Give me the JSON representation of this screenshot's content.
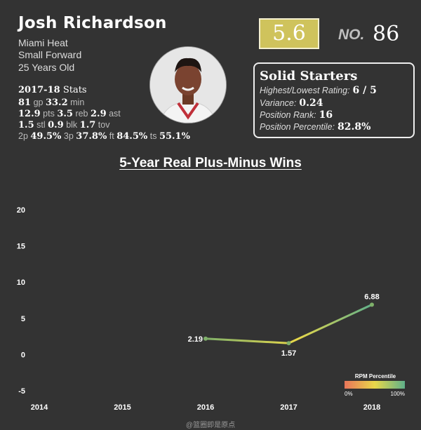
{
  "player": {
    "name": "Josh Richardson",
    "team": "Miami Heat",
    "position": "Small Forward",
    "age": "25 Years Old"
  },
  "season_stats": {
    "year": "2017-18",
    "label": "Stats",
    "gp": "81",
    "gp_label": "gp",
    "min": "33.2",
    "min_label": "min",
    "pts": "12.9",
    "pts_label": "pts",
    "reb": "3.5",
    "reb_label": "reb",
    "ast": "2.9",
    "ast_label": "ast",
    "stl": "1.5",
    "stl_label": "stl",
    "blk": "0.9",
    "blk_label": "blk",
    "tov": "1.7",
    "tov_label": "tov",
    "p2_label": "2p",
    "p2": "49.5%",
    "p3_label": "3p",
    "p3": "37.8%",
    "ft_label": "ft",
    "ft": "84.5%",
    "ts_label": "ts",
    "ts": "55.1%"
  },
  "rating": {
    "score": "5.6",
    "rank_label": "NO.",
    "rank": "86"
  },
  "tier": {
    "title": "Solid Starters",
    "hl_label": "Highest/Lowest Rating:",
    "hl_value": "6 / 5",
    "variance_label": "Variance:",
    "variance_value": "0.24",
    "pos_rank_label": "Position Rank:",
    "pos_rank_value": "16",
    "pos_pct_label": "Position Percentile:",
    "pos_pct_value": "82.8%"
  },
  "chart_data": {
    "type": "line",
    "title": "5-Year Real Plus-Minus Wins",
    "x": [
      "2014",
      "2015",
      "2016",
      "2017",
      "2018"
    ],
    "series": [
      {
        "values": [
          null,
          null,
          2.19,
          1.57,
          6.88
        ],
        "labels": [
          "",
          "",
          "2.19",
          "1.57",
          "6.88"
        ]
      }
    ],
    "yticks": [
      "20",
      "15",
      "10",
      "5",
      "0",
      "-5"
    ],
    "ytick_values": [
      20,
      15,
      10,
      5,
      0,
      -5
    ],
    "ylim": [
      -5,
      20
    ],
    "grid": false,
    "legend": {
      "title": "RPM Percentile",
      "min_label": "0%",
      "max_label": "100%",
      "placement": "bottom-right"
    },
    "colors": {
      "low": "#e8755a",
      "mid": "#e8d84a",
      "high": "#5fb08a",
      "point": "#7fb06a"
    }
  },
  "watermark": "@篮圈即是原点"
}
